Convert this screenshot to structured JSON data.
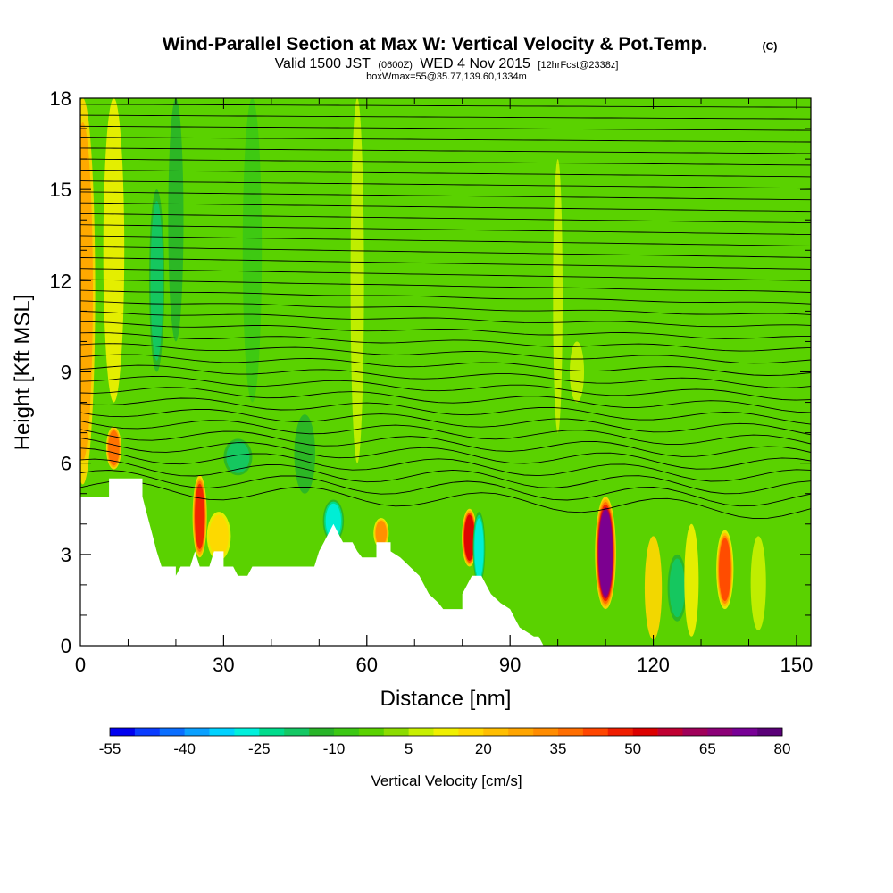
{
  "title": {
    "main": "Wind-Parallel Section at Max W: Vertical Velocity & Pot.Temp.",
    "copyright": "(C)",
    "valid_prefix": "Valid 1500 JST",
    "valid_utc": "(0600Z)",
    "valid_date": "WED 4 Nov 2015",
    "forecast": "[12hrFcst@2338z]",
    "box": "boxWmax=55@35.77,139.60,1334m"
  },
  "chart_data": {
    "type": "heatmap",
    "xlabel": "Distance [nm]",
    "ylabel": "Height [Kft MSL]",
    "xlim": [
      0,
      153
    ],
    "ylim": [
      0,
      18
    ],
    "xticks": [
      0,
      30,
      60,
      90,
      120,
      150
    ],
    "yticks": [
      0,
      3,
      6,
      9,
      12,
      15,
      18
    ],
    "x_minor_step": 10,
    "y_minor_step": 1,
    "colorbar": {
      "label": "Vertical Velocity [cm/s]",
      "min": -55,
      "max": 80,
      "step": 5,
      "tick_labels": [
        -55,
        -40,
        -25,
        -10,
        5,
        20,
        35,
        50,
        65,
        80
      ],
      "colors": [
        "#0000f0",
        "#0a3cff",
        "#0a6eff",
        "#0aa0ff",
        "#00d2ff",
        "#00f0dc",
        "#00dc8c",
        "#14c864",
        "#28b428",
        "#3cc814",
        "#5ad200",
        "#8cdc00",
        "#c8f000",
        "#f0f000",
        "#ffd700",
        "#ffbe00",
        "#ffa500",
        "#ff8c00",
        "#ff6e00",
        "#ff4600",
        "#f01e00",
        "#dc0000",
        "#c00032",
        "#a0005a",
        "#8c0078",
        "#780096",
        "#5a0078"
      ]
    },
    "terrain": [
      [
        0,
        4.9
      ],
      [
        6,
        4.9
      ],
      [
        6,
        5.5
      ],
      [
        13,
        5.5
      ],
      [
        13,
        4.9
      ],
      [
        14,
        4.3
      ],
      [
        15,
        3.7
      ],
      [
        16,
        3.1
      ],
      [
        17,
        2.6
      ],
      [
        20,
        2.6
      ],
      [
        20,
        2.3
      ],
      [
        21,
        2.6
      ],
      [
        23,
        2.6
      ],
      [
        24,
        3.1
      ],
      [
        25,
        2.6
      ],
      [
        27,
        2.6
      ],
      [
        28,
        3.1
      ],
      [
        30,
        3.1
      ],
      [
        30,
        2.6
      ],
      [
        32,
        2.6
      ],
      [
        33,
        2.3
      ],
      [
        35,
        2.3
      ],
      [
        36,
        2.6
      ],
      [
        49,
        2.6
      ],
      [
        50,
        3.1
      ],
      [
        51,
        3.4
      ],
      [
        52,
        3.7
      ],
      [
        53,
        4.0
      ],
      [
        54,
        3.7
      ],
      [
        55,
        3.4
      ],
      [
        57,
        3.4
      ],
      [
        58,
        3.1
      ],
      [
        59,
        2.9
      ],
      [
        62,
        2.9
      ],
      [
        62,
        3.4
      ],
      [
        65,
        3.4
      ],
      [
        65,
        3.1
      ],
      [
        67,
        2.9
      ],
      [
        69,
        2.6
      ],
      [
        71,
        2.3
      ],
      [
        72,
        2.0
      ],
      [
        73,
        1.7
      ],
      [
        75,
        1.4
      ],
      [
        76,
        1.2
      ],
      [
        80,
        1.2
      ],
      [
        80,
        1.7
      ],
      [
        81,
        2.0
      ],
      [
        82,
        2.3
      ],
      [
        84,
        2.3
      ],
      [
        85,
        2.0
      ],
      [
        86,
        1.7
      ],
      [
        88,
        1.4
      ],
      [
        90,
        1.2
      ],
      [
        91,
        0.9
      ],
      [
        92,
        0.6
      ],
      [
        95,
        0.3
      ],
      [
        96,
        0.3
      ],
      [
        97,
        0
      ],
      [
        153,
        0
      ]
    ],
    "features": [
      {
        "x": 0.5,
        "y0": 5.3,
        "y1": 18,
        "w": 2.6,
        "value": 28
      },
      {
        "x": 7,
        "y0": 5.8,
        "y1": 7.2,
        "w": 1.6,
        "value": 35
      },
      {
        "x": 7,
        "y0": 8,
        "y1": 18,
        "w": 2.2,
        "value": 10
      },
      {
        "x": 25,
        "y0": 2.9,
        "y1": 5.6,
        "w": 1.5,
        "value": 48
      },
      {
        "x": 29,
        "y0": 2.8,
        "y1": 4.4,
        "w": 2.5,
        "value": 18
      },
      {
        "x": 53,
        "y0": 3.4,
        "y1": 4.8,
        "w": 2.2,
        "value": -30
      },
      {
        "x": 63,
        "y0": 3.2,
        "y1": 4.2,
        "w": 1.6,
        "value": 32
      },
      {
        "x": 81.5,
        "y0": 2.6,
        "y1": 4.5,
        "w": 1.6,
        "value": 52
      },
      {
        "x": 83.5,
        "y0": 2.0,
        "y1": 4.4,
        "w": 1.3,
        "value": -30
      },
      {
        "x": 110,
        "y0": 1.2,
        "y1": 4.9,
        "w": 2.2,
        "value": 72
      },
      {
        "x": 120,
        "y0": 0.2,
        "y1": 3.6,
        "w": 1.8,
        "value": 15
      },
      {
        "x": 125,
        "y0": 0.8,
        "y1": 3.0,
        "w": 2.0,
        "value": -20
      },
      {
        "x": 135,
        "y0": 1.2,
        "y1": 3.8,
        "w": 1.8,
        "value": 42
      },
      {
        "x": 128,
        "y0": 0.3,
        "y1": 4.0,
        "w": 1.5,
        "value": 10
      },
      {
        "x": 142,
        "y0": 0.5,
        "y1": 3.6,
        "w": 1.6,
        "value": 8
      },
      {
        "x": 58,
        "y0": 6,
        "y1": 18,
        "w": 1.4,
        "value": 8
      },
      {
        "x": 100,
        "y0": 7,
        "y1": 16,
        "w": 1.0,
        "value": 6
      },
      {
        "x": 104,
        "y0": 8,
        "y1": 10,
        "w": 1.5,
        "value": 8
      },
      {
        "x": 20,
        "y0": 10,
        "y1": 18,
        "w": 1.6,
        "value": -12
      },
      {
        "x": 16,
        "y0": 9,
        "y1": 15,
        "w": 1.6,
        "value": -18
      },
      {
        "x": 36,
        "y0": 8,
        "y1": 18,
        "w": 2.0,
        "value": -10
      },
      {
        "x": 47,
        "y0": 5,
        "y1": 7.6,
        "w": 2.2,
        "value": -14
      },
      {
        "x": 33,
        "y0": 5.6,
        "y1": 6.8,
        "w": 3.0,
        "value": -18
      }
    ],
    "isentropes": {
      "count": 36,
      "left_height_start": 5.2,
      "left_height_step": 0.36,
      "right_height_start": 4.4,
      "right_height_step": 0.38
    }
  }
}
